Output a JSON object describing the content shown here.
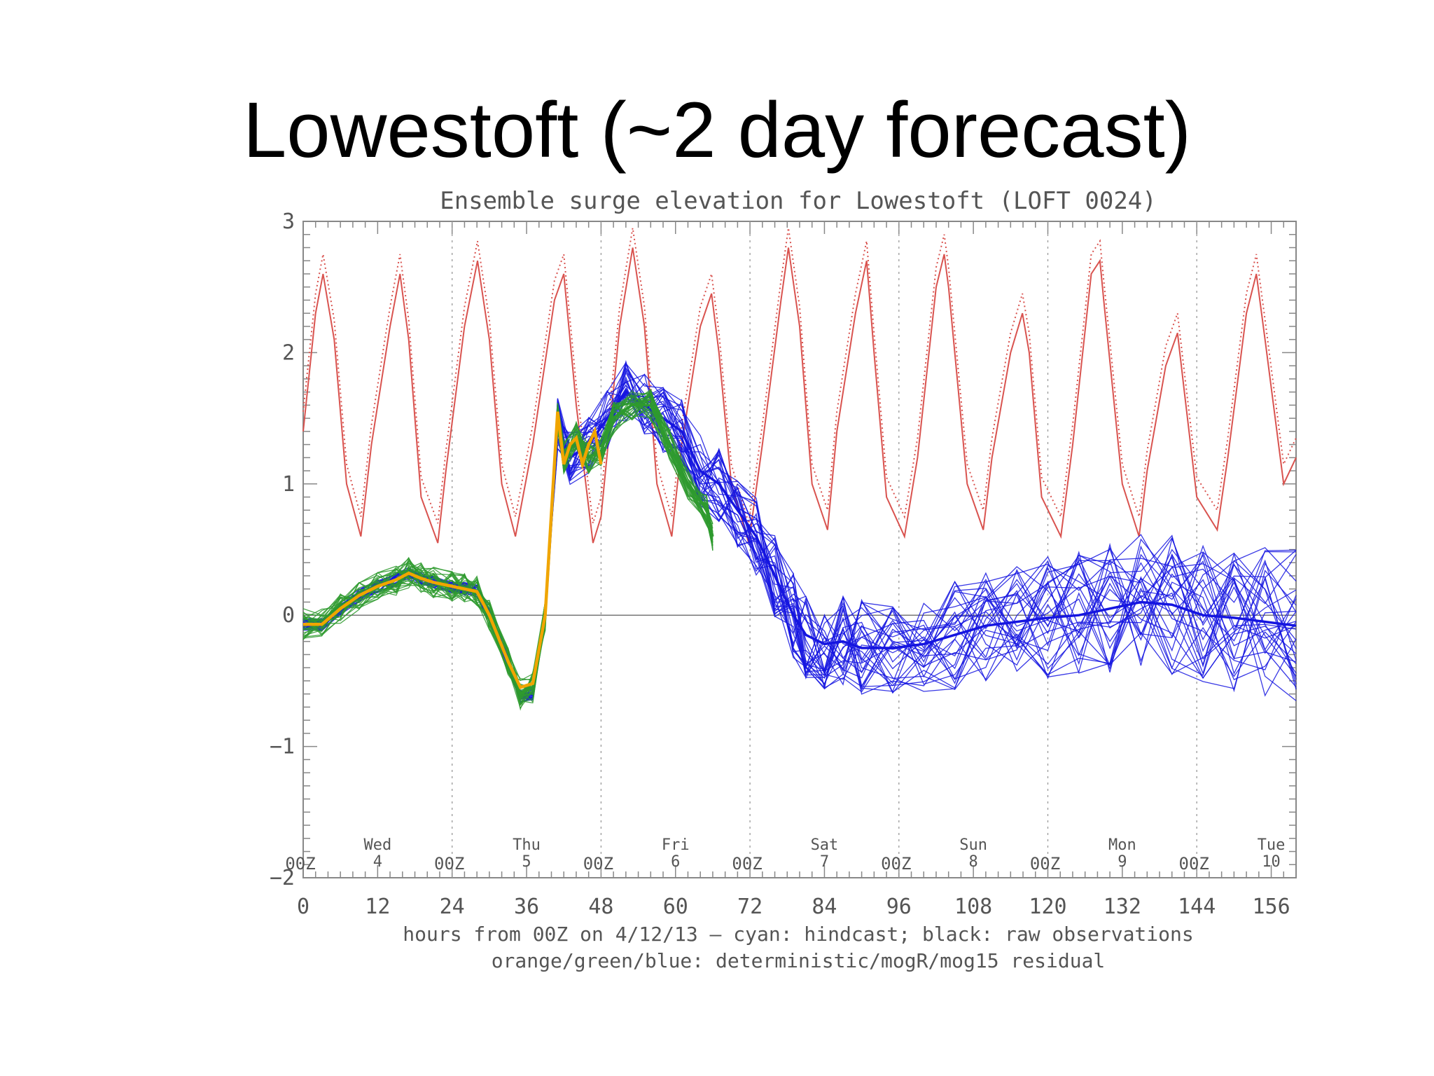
{
  "slide": {
    "title": "Lowestoft (~2 day forecast)"
  },
  "chart_data": {
    "type": "line",
    "title": "Ensemble surge elevation for Lowestoft (LOFT 0024)",
    "xlabel": "hours from 00Z on 4/12/13  —  cyan: hindcast; black: raw observations",
    "xlabel2": "orange/green/blue: deterministic/mogR/mog15 residual",
    "xlim": [
      0,
      160
    ],
    "ylim": [
      -2,
      3
    ],
    "x_ticks": [
      0,
      12,
      24,
      36,
      48,
      60,
      72,
      84,
      96,
      108,
      120,
      132,
      144,
      156
    ],
    "y_ticks": [
      -2,
      -1,
      0,
      1,
      2,
      3
    ],
    "grid": false,
    "day_markers": [
      {
        "hour": 0,
        "label": "00Z"
      },
      {
        "hour": 24,
        "label": "00Z"
      },
      {
        "hour": 48,
        "label": "00Z"
      },
      {
        "hour": 72,
        "label": "00Z"
      },
      {
        "hour": 96,
        "label": "00Z"
      },
      {
        "hour": 120,
        "label": "00Z"
      },
      {
        "hour": 144,
        "label": "00Z"
      }
    ],
    "day_labels": [
      {
        "hour": 12,
        "day": "Wed",
        "date": "4"
      },
      {
        "hour": 36,
        "day": "Thu",
        "date": "5"
      },
      {
        "hour": 60,
        "day": "Fri",
        "date": "6"
      },
      {
        "hour": 84,
        "day": "Sat",
        "date": "7"
      },
      {
        "hour": 108,
        "day": "Sun",
        "date": "8"
      },
      {
        "hour": 132,
        "day": "Mon",
        "date": "9"
      },
      {
        "hour": 156,
        "day": "Tue",
        "date": "10"
      }
    ],
    "colors": {
      "tide": "#d9534f",
      "mog15": "#1515e0",
      "mogR": "#2e9a2e",
      "deterministic": "#f0a500",
      "axis": "#888888"
    },
    "series": [
      {
        "key": "tide",
        "x": [
          0,
          2,
          3.2,
          5,
          7,
          9.3,
          11,
          14,
          15.6,
          17,
          19,
          21.7,
          23,
          26,
          28.1,
          30,
          32,
          34.2,
          37,
          40.5,
          42,
          44,
          46.7,
          48,
          51,
          53.1,
          55,
          57,
          59.4,
          61,
          64,
          65.8,
          67,
          69,
          71.8,
          74,
          77,
          78.2,
          80,
          82,
          84.5,
          86,
          89,
          90.8,
          92,
          94,
          96.9,
          99,
          102,
          103.3,
          104,
          107,
          109.6,
          111,
          114,
          115.9,
          117,
          119,
          122.1,
          124,
          127,
          128.4,
          129,
          132,
          134.7,
          136,
          139,
          140.9,
          142,
          144,
          147.3,
          149,
          152,
          153.6,
          155,
          158,
          160
        ],
        "y": [
          1.4,
          2.3,
          2.6,
          2.1,
          1.0,
          0.6,
          1.3,
          2.2,
          2.6,
          2.1,
          0.9,
          0.55,
          1.1,
          2.2,
          2.7,
          2.1,
          1.0,
          0.6,
          1.3,
          2.4,
          2.6,
          1.6,
          0.55,
          0.75,
          2.2,
          2.8,
          2.2,
          1.0,
          0.6,
          1.3,
          2.2,
          2.45,
          2.0,
          1.0,
          0.55,
          1.3,
          2.4,
          2.8,
          2.2,
          1.0,
          0.65,
          1.4,
          2.3,
          2.7,
          2.0,
          0.9,
          0.6,
          1.2,
          2.5,
          2.75,
          2.5,
          1.0,
          0.65,
          1.2,
          2.0,
          2.3,
          2.0,
          0.9,
          0.6,
          1.3,
          2.6,
          2.7,
          2.4,
          1.0,
          0.6,
          1.1,
          1.9,
          2.15,
          1.7,
          0.9,
          0.65,
          1.2,
          2.3,
          2.6,
          2.1,
          1.0,
          1.2
        ]
      },
      {
        "key": "deterministic",
        "x": [
          0,
          3,
          6,
          9,
          12,
          15,
          17,
          19,
          21,
          24,
          26,
          28,
          30,
          33,
          35,
          37,
          39,
          41,
          42,
          43,
          44,
          45,
          46,
          47,
          48
        ],
        "y": [
          -0.07,
          -0.07,
          0.05,
          0.15,
          0.22,
          0.27,
          0.32,
          0.28,
          0.25,
          0.22,
          0.2,
          0.18,
          0.0,
          -0.35,
          -0.55,
          -0.52,
          0.0,
          1.55,
          1.15,
          1.3,
          1.35,
          1.15,
          1.3,
          1.4,
          1.15
        ]
      },
      {
        "key": "mogR",
        "x": [
          0,
          3,
          6,
          9,
          12,
          15,
          17,
          19,
          21,
          24,
          26,
          28,
          30,
          33,
          35,
          37,
          39,
          41,
          42,
          44,
          46,
          48,
          50,
          53,
          56,
          59,
          62,
          65,
          66
        ],
        "y": [
          -0.07,
          -0.07,
          0.05,
          0.15,
          0.22,
          0.27,
          0.32,
          0.28,
          0.25,
          0.22,
          0.2,
          0.18,
          0.0,
          -0.35,
          -0.6,
          -0.55,
          0.0,
          1.5,
          1.2,
          1.35,
          1.2,
          1.25,
          1.5,
          1.6,
          1.6,
          1.3,
          1.0,
          0.8,
          0.6
        ],
        "spread": 0.12,
        "members": 30
      },
      {
        "key": "mog15",
        "x": [
          0,
          3,
          6,
          9,
          12,
          15,
          17,
          19,
          21,
          24,
          26,
          28,
          30,
          33,
          35,
          37,
          39,
          41,
          43,
          46,
          49,
          52,
          55,
          58,
          61,
          64,
          67,
          70,
          73,
          76,
          79,
          81,
          84,
          87,
          90,
          95,
          100,
          105,
          110,
          115,
          120,
          125,
          130,
          135,
          140,
          145,
          150,
          155,
          160
        ],
        "y": [
          -0.07,
          -0.07,
          0.05,
          0.15,
          0.22,
          0.27,
          0.32,
          0.28,
          0.25,
          0.22,
          0.2,
          0.18,
          0.0,
          -0.35,
          -0.62,
          -0.6,
          0.0,
          1.45,
          1.2,
          1.3,
          1.5,
          1.7,
          1.6,
          1.5,
          1.4,
          1.1,
          1.0,
          0.8,
          0.6,
          0.3,
          0.0,
          -0.15,
          -0.22,
          -0.2,
          -0.25,
          -0.25,
          -0.22,
          -0.15,
          -0.08,
          -0.05,
          -0.02,
          0.0,
          0.05,
          0.1,
          0.08,
          0.0,
          -0.02,
          -0.05,
          -0.08
        ],
        "spread": 0.2,
        "members": 30
      }
    ]
  }
}
